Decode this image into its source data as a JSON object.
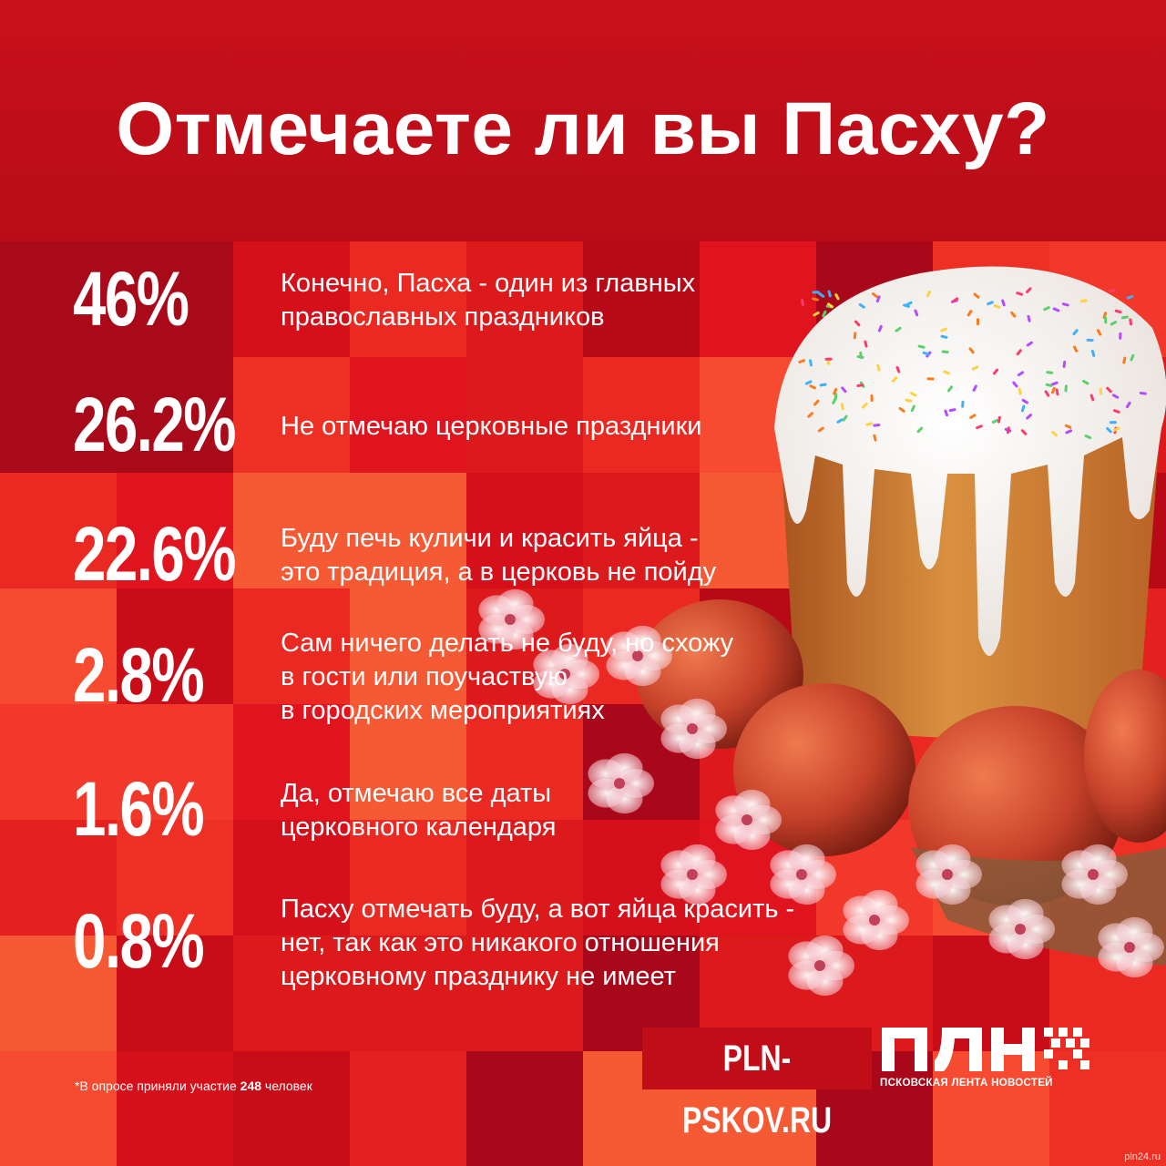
{
  "title": "Отмечаете ли вы Пасху?",
  "chart_data": {
    "type": "table",
    "values": [
      46,
      26.2,
      22.6,
      2.8,
      1.6,
      0.8
    ],
    "rows": [
      {
        "value_label": "46%",
        "lines": [
          "Конечно, Пасха - один из главных",
          "православных праздников"
        ]
      },
      {
        "value_label": "26.2%",
        "lines": [
          "Не отмечаю церковные праздники"
        ]
      },
      {
        "value_label": "22.6%",
        "lines": [
          "Буду печь куличи и красить яйца -",
          "это традиция, а в церковь не пойду"
        ]
      },
      {
        "value_label": "2.8%",
        "lines": [
          "Сам ничего делать не буду, но схожу",
          "в гости или поучаствую",
          "в городских мероприятиях"
        ]
      },
      {
        "value_label": "1.6%",
        "lines": [
          "Да, отмечаю все даты",
          "церковного календаря"
        ]
      },
      {
        "value_label": "0.8%",
        "lines": [
          "Пасху отмечать буду, а вот яйца красить -",
          "нет, так как это никакого отношения",
          "церковному празднику не имеет"
        ]
      }
    ]
  },
  "footnote": {
    "prefix": "*В опросе приняли участие ",
    "count": "248",
    "suffix": " человек"
  },
  "site": "PLN-PSKOV.RU",
  "logo": {
    "letters": "ПЛН",
    "subtitle": "ПСКОВСКАЯ ЛЕНТА НОВОСТЕЙ",
    "icon": "pixel-grid-icon"
  },
  "watermark": "pln24.ru",
  "colors": {
    "header": "#c8101a",
    "accent": "#c00d18",
    "text": "#ffffff"
  }
}
